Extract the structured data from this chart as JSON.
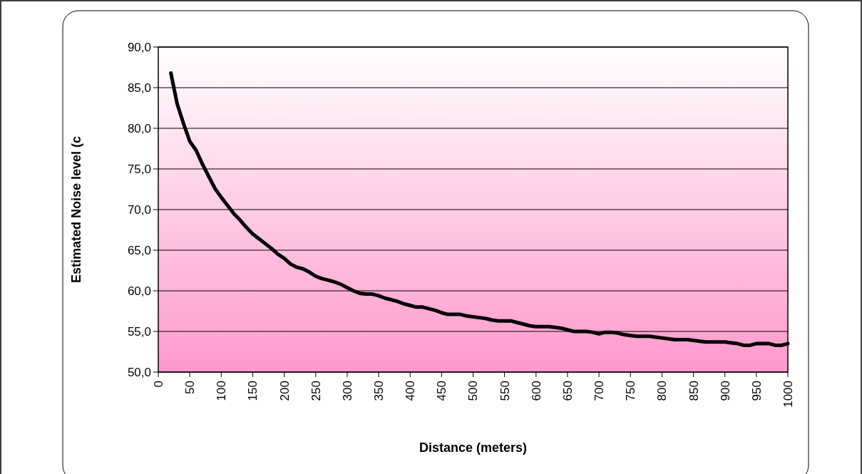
{
  "chart_data": {
    "type": "line",
    "xlabel": "Distance (meters)",
    "ylabel": "Estimated Noise level (c",
    "x": [
      20,
      30,
      40,
      50,
      60,
      70,
      80,
      90,
      100,
      110,
      120,
      130,
      140,
      150,
      160,
      170,
      180,
      190,
      200,
      210,
      220,
      230,
      240,
      250,
      260,
      270,
      280,
      290,
      300,
      310,
      320,
      330,
      340,
      350,
      360,
      370,
      380,
      390,
      400,
      410,
      420,
      430,
      440,
      450,
      460,
      470,
      480,
      490,
      500,
      510,
      520,
      530,
      540,
      550,
      560,
      570,
      580,
      590,
      600,
      610,
      620,
      630,
      640,
      650,
      660,
      670,
      680,
      690,
      700,
      710,
      720,
      730,
      740,
      750,
      760,
      770,
      780,
      790,
      800,
      810,
      820,
      830,
      840,
      850,
      860,
      870,
      880,
      890,
      900,
      910,
      920,
      930,
      940,
      950,
      960,
      970,
      980,
      990,
      1000
    ],
    "series": [
      {
        "color": "#000000",
        "values": [
          86.8,
          83.0,
          80.6,
          78.4,
          77.3,
          75.6,
          74.1,
          72.6,
          71.5,
          70.5,
          69.5,
          68.7,
          67.8,
          67.0,
          66.4,
          65.8,
          65.2,
          64.5,
          64.0,
          63.3,
          62.9,
          62.7,
          62.3,
          61.8,
          61.5,
          61.3,
          61.1,
          60.8,
          60.4,
          60.0,
          59.7,
          59.6,
          59.6,
          59.4,
          59.1,
          58.9,
          58.7,
          58.4,
          58.2,
          58.0,
          58.0,
          57.8,
          57.6,
          57.3,
          57.1,
          57.1,
          57.1,
          56.9,
          56.8,
          56.7,
          56.6,
          56.4,
          56.3,
          56.3,
          56.3,
          56.1,
          55.9,
          55.7,
          55.6,
          55.6,
          55.6,
          55.5,
          55.4,
          55.2,
          55.0,
          55.0,
          55.0,
          54.9,
          54.7,
          54.9,
          54.9,
          54.8,
          54.6,
          54.5,
          54.4,
          54.4,
          54.4,
          54.3,
          54.2,
          54.1,
          54.0,
          54.0,
          54.0,
          53.9,
          53.8,
          53.7,
          53.7,
          53.7,
          53.7,
          53.6,
          53.5,
          53.3,
          53.3,
          53.5,
          53.5,
          53.5,
          53.3,
          53.3,
          53.5
        ]
      }
    ],
    "xlim": [
      0,
      1000
    ],
    "xticks": [
      0,
      50,
      100,
      150,
      200,
      250,
      300,
      350,
      400,
      450,
      500,
      550,
      600,
      650,
      700,
      750,
      800,
      850,
      900,
      950,
      1000
    ],
    "ylim": [
      50,
      90
    ],
    "yticks": [
      {
        "value": 50,
        "label": "50,0"
      },
      {
        "value": 55,
        "label": "55,0"
      },
      {
        "value": 60,
        "label": "60,0"
      },
      {
        "value": 65,
        "label": "65,0"
      },
      {
        "value": 70,
        "label": "70,0"
      },
      {
        "value": 75,
        "label": "75,0"
      },
      {
        "value": 80,
        "label": "80,0"
      },
      {
        "value": 85,
        "label": "85,0"
      },
      {
        "value": 90,
        "label": "90,0"
      }
    ],
    "grid": "y",
    "marker": "none",
    "line_style": "solid"
  }
}
